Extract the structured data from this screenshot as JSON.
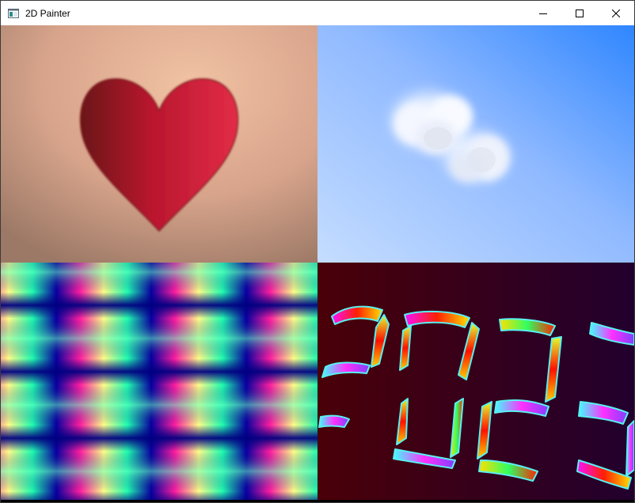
{
  "window": {
    "title": "2D Painter",
    "icon": "app-window-icon",
    "controls": [
      {
        "name": "minimize",
        "icon": "minimize-icon"
      },
      {
        "name": "maximize",
        "icon": "maximize-icon"
      },
      {
        "name": "close",
        "icon": "close-icon"
      }
    ]
  },
  "canvas": {
    "panels": [
      {
        "name": "heart-panel",
        "description_icon": "heart-icon"
      },
      {
        "name": "sky-cloud-panel",
        "description_icon": "cloud-icon"
      },
      {
        "name": "plaid-panel",
        "description_icon": "pattern-icon"
      },
      {
        "name": "year-digits-panel",
        "description_icon": "digits-icon"
      }
    ]
  },
  "colors": {
    "heart_background": "#d8a48c",
    "heart": "#c0183a",
    "sky_top": "#3d8dff",
    "sky_bottom": "#b9d8ff",
    "plaid_pink": "#ff2fa8",
    "plaid_mint": "#39ffb0",
    "plaid_yellow": "#fbffa8",
    "plaid_navy": "#050090",
    "digits_background_left": "#4a0008",
    "digits_background_right": "#22002e"
  }
}
